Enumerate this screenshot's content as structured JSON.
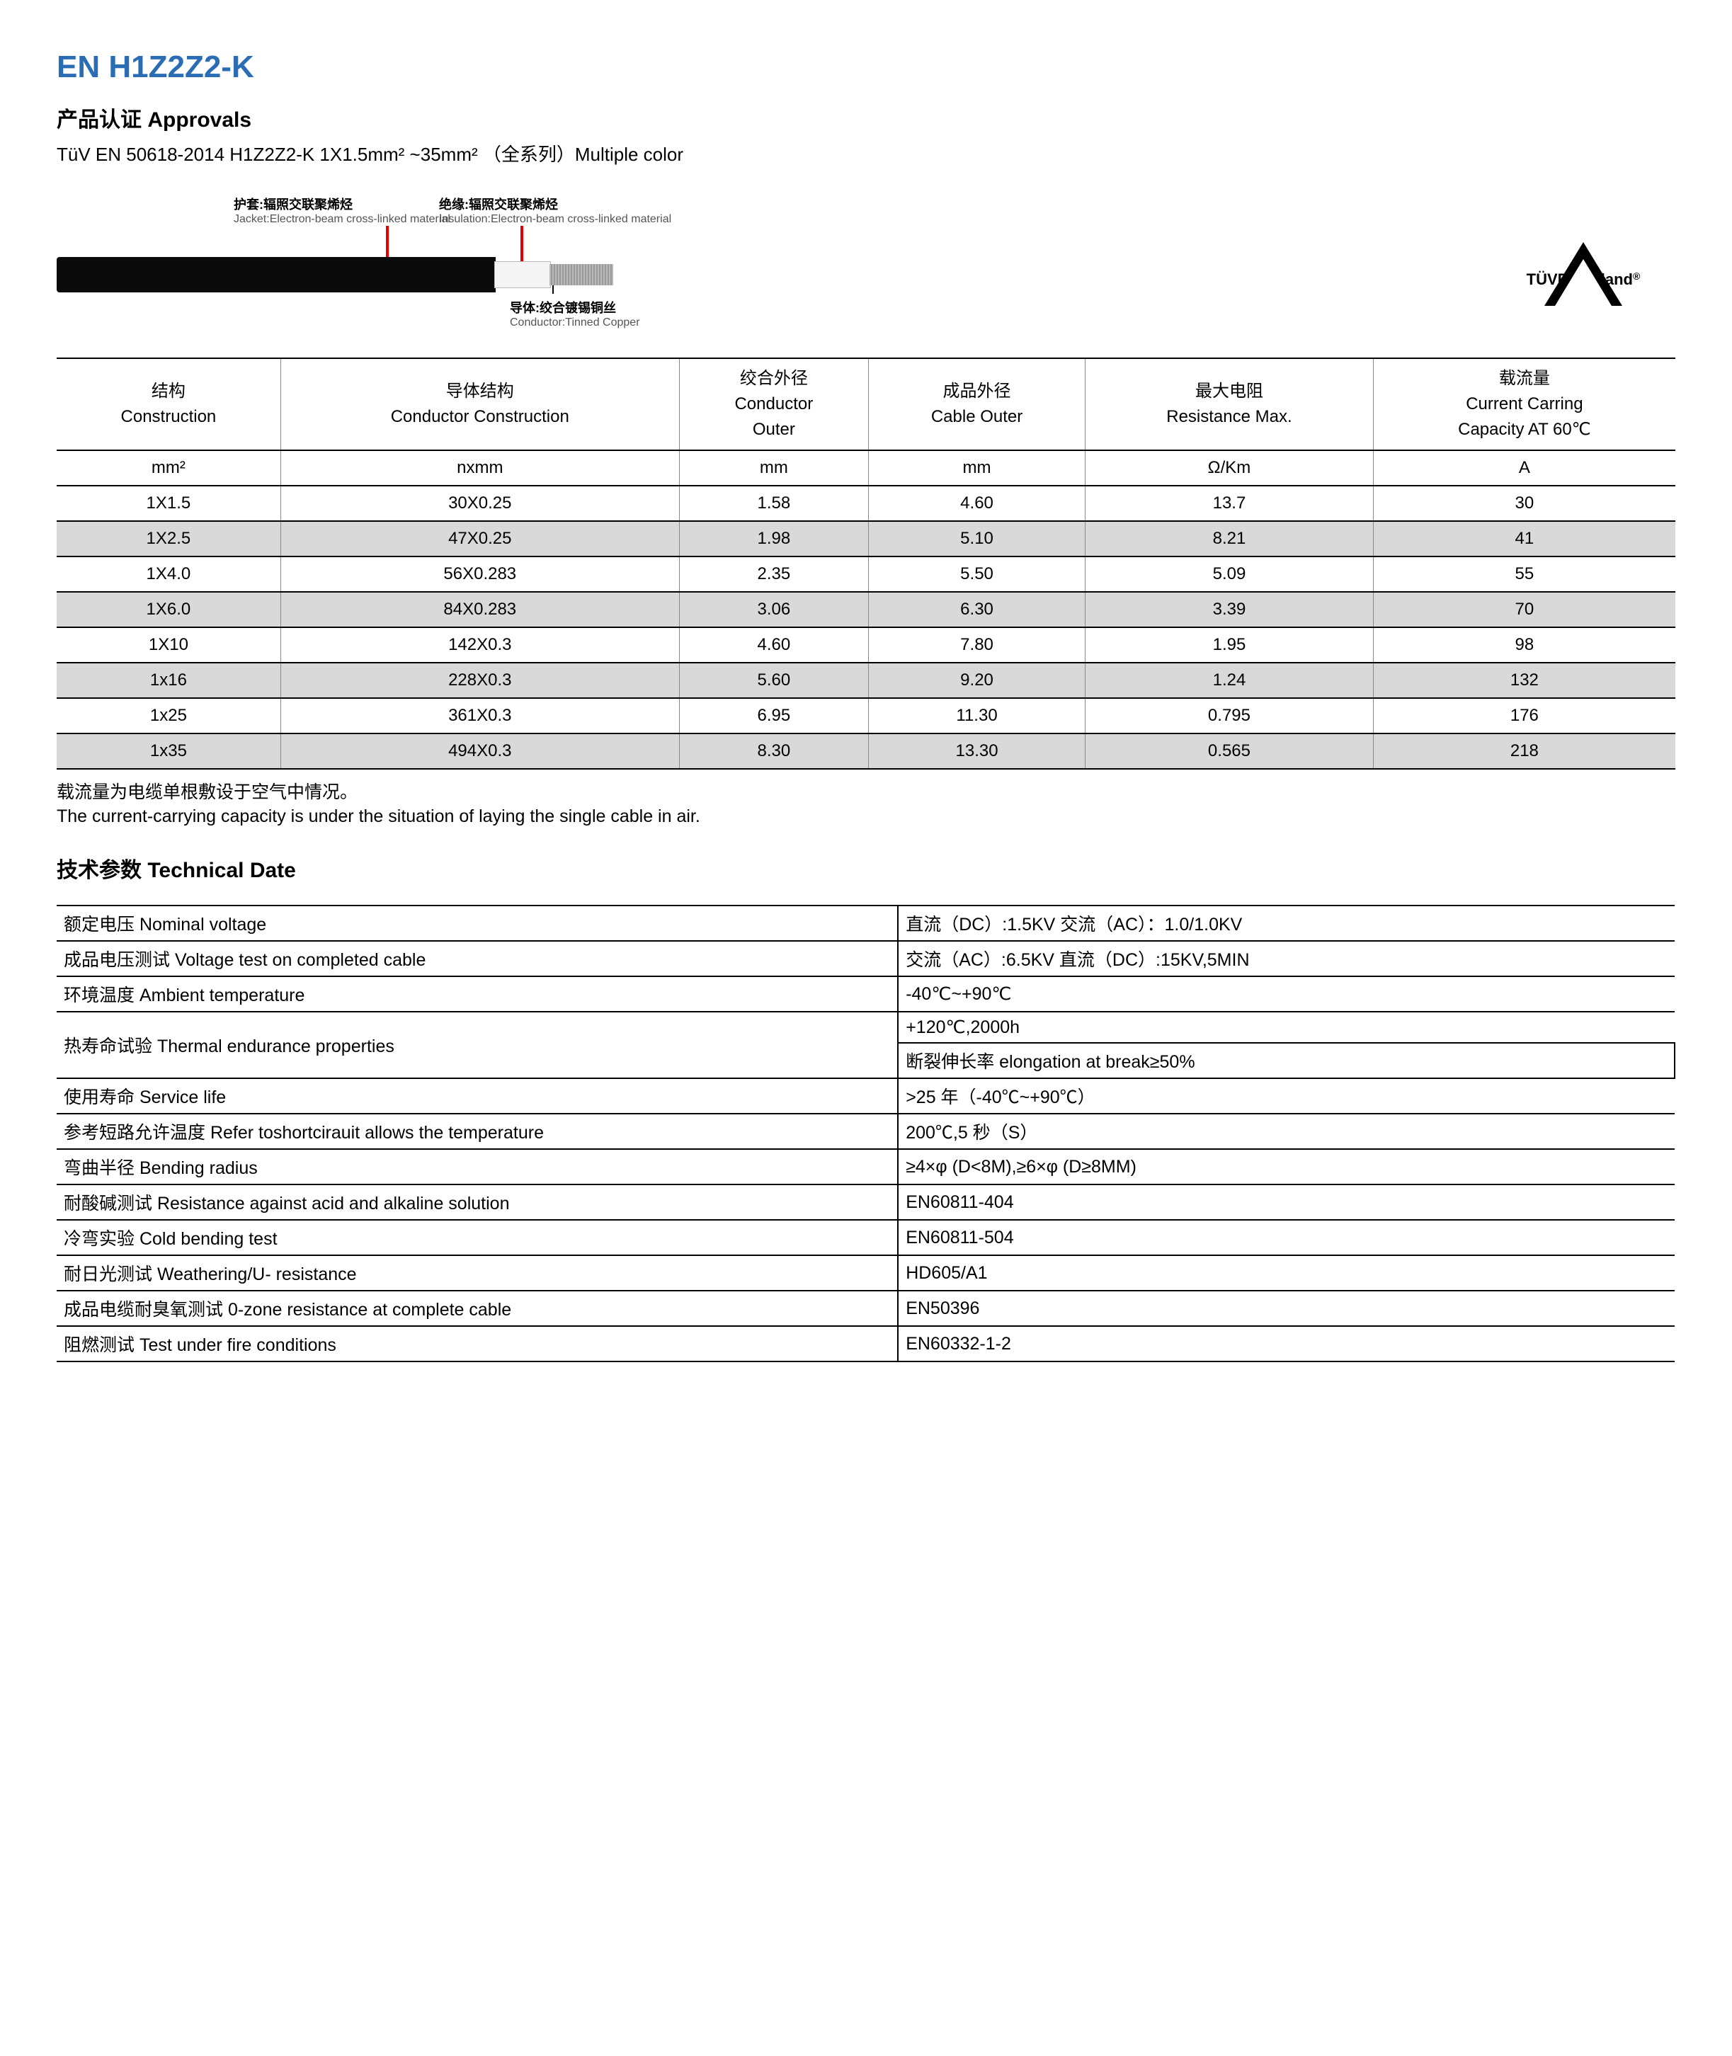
{
  "title": "EN H1Z2Z2-K",
  "approvals_heading": "产品认证 Approvals",
  "approvals_text": "TüV EN 50618-2014 H1Z2Z2-K 1X1.5mm²  ~35mm²  （全系列）Multiple color",
  "diagram": {
    "jacket_cn": "护套:辐照交联聚烯烃",
    "jacket_en": "Jacket:Electron-beam cross-linked material",
    "insul_cn": "绝缘:辐照交联聚烯烃",
    "insul_en": "Insulation:Electron-beam cross-linked material",
    "cond_cn": "导体:绞合镀锡铜丝",
    "cond_en": "Conductor:Tinned Copper"
  },
  "tuv_label": "TÜVRheinland",
  "spec_table": {
    "headers": [
      "结构\nConstruction",
      "导体结构\nConductor Construction",
      "绞合外径\nConductor\nOuter",
      "成品外径\nCable Outer",
      "最大电阻\nResistance Max.",
      "载流量\nCurrent Carring\nCapacity AT 60℃"
    ],
    "units": [
      "mm²",
      "nxmm",
      "mm",
      "mm",
      "Ω/Km",
      "A"
    ],
    "rows": [
      [
        "1X1.5",
        "30X0.25",
        "1.58",
        "4.60",
        "13.7",
        "30"
      ],
      [
        "1X2.5",
        "47X0.25",
        "1.98",
        "5.10",
        "8.21",
        "41"
      ],
      [
        "1X4.0",
        "56X0.283",
        "2.35",
        "5.50",
        "5.09",
        "55"
      ],
      [
        "1X6.0",
        "84X0.283",
        "3.06",
        "6.30",
        "3.39",
        "70"
      ],
      [
        "1X10",
        "142X0.3",
        "4.60",
        "7.80",
        "1.95",
        "98"
      ],
      [
        "1x16",
        "228X0.3",
        "5.60",
        "9.20",
        "1.24",
        "132"
      ],
      [
        "1x25",
        "361X0.3",
        "6.95",
        "11.30",
        "0.795",
        "176"
      ],
      [
        "1x35",
        "494X0.3",
        "8.30",
        "13.30",
        "0.565",
        "218"
      ]
    ]
  },
  "note_cn": "载流量为电缆单根敷设于空气中情况。",
  "note_en": "The current-carrying capacity is under the situation of laying the single cable in air.",
  "tech_heading": "技术参数 Technical Date",
  "tech_table": {
    "rows": [
      {
        "l": "额定电压  Nominal voltage",
        "r": "直流（DC）:1.5KV  交流（AC）：1.0/1.0KV"
      },
      {
        "l": "成品电压测试  Voltage test on completed cable",
        "r": "交流（AC）:6.5KV  直流（DC）:15KV,5MIN"
      },
      {
        "l": "环境温度  Ambient temperature",
        "r": "-40℃~+90℃"
      },
      {
        "l": "热寿命试验  Thermal endurance properties",
        "r": "+120℃,2000h\n断裂伸长率 elongation at break≥50%",
        "rowspan": 2
      },
      {
        "l": "使用寿命  Service life",
        "r": ">25 年（-40℃~+90℃）"
      },
      {
        "l": "参考短路允许温度  Refer toshortcirauit allows the temperature",
        "r": "200℃,5 秒（S）"
      },
      {
        "l": "弯曲半径  Bending radius",
        "r": "≥4×φ (D<8M),≥6×φ (D≥8MM)"
      },
      {
        "l": "耐酸碱测试  Resistance against acid and alkaline solution",
        "r": "EN60811-404"
      },
      {
        "l": "冷弯实验  Cold bending test",
        "r": "EN60811-504"
      },
      {
        "l": "耐日光测试  Weathering/U- resistance",
        "r": "HD605/A1"
      },
      {
        "l": "成品电缆耐臭氧测试 0-zone resistance at complete cable",
        "r": "EN50396"
      },
      {
        "l": "阻燃测试  Test under fire conditions",
        "r": "EN60332-1-2"
      }
    ]
  }
}
